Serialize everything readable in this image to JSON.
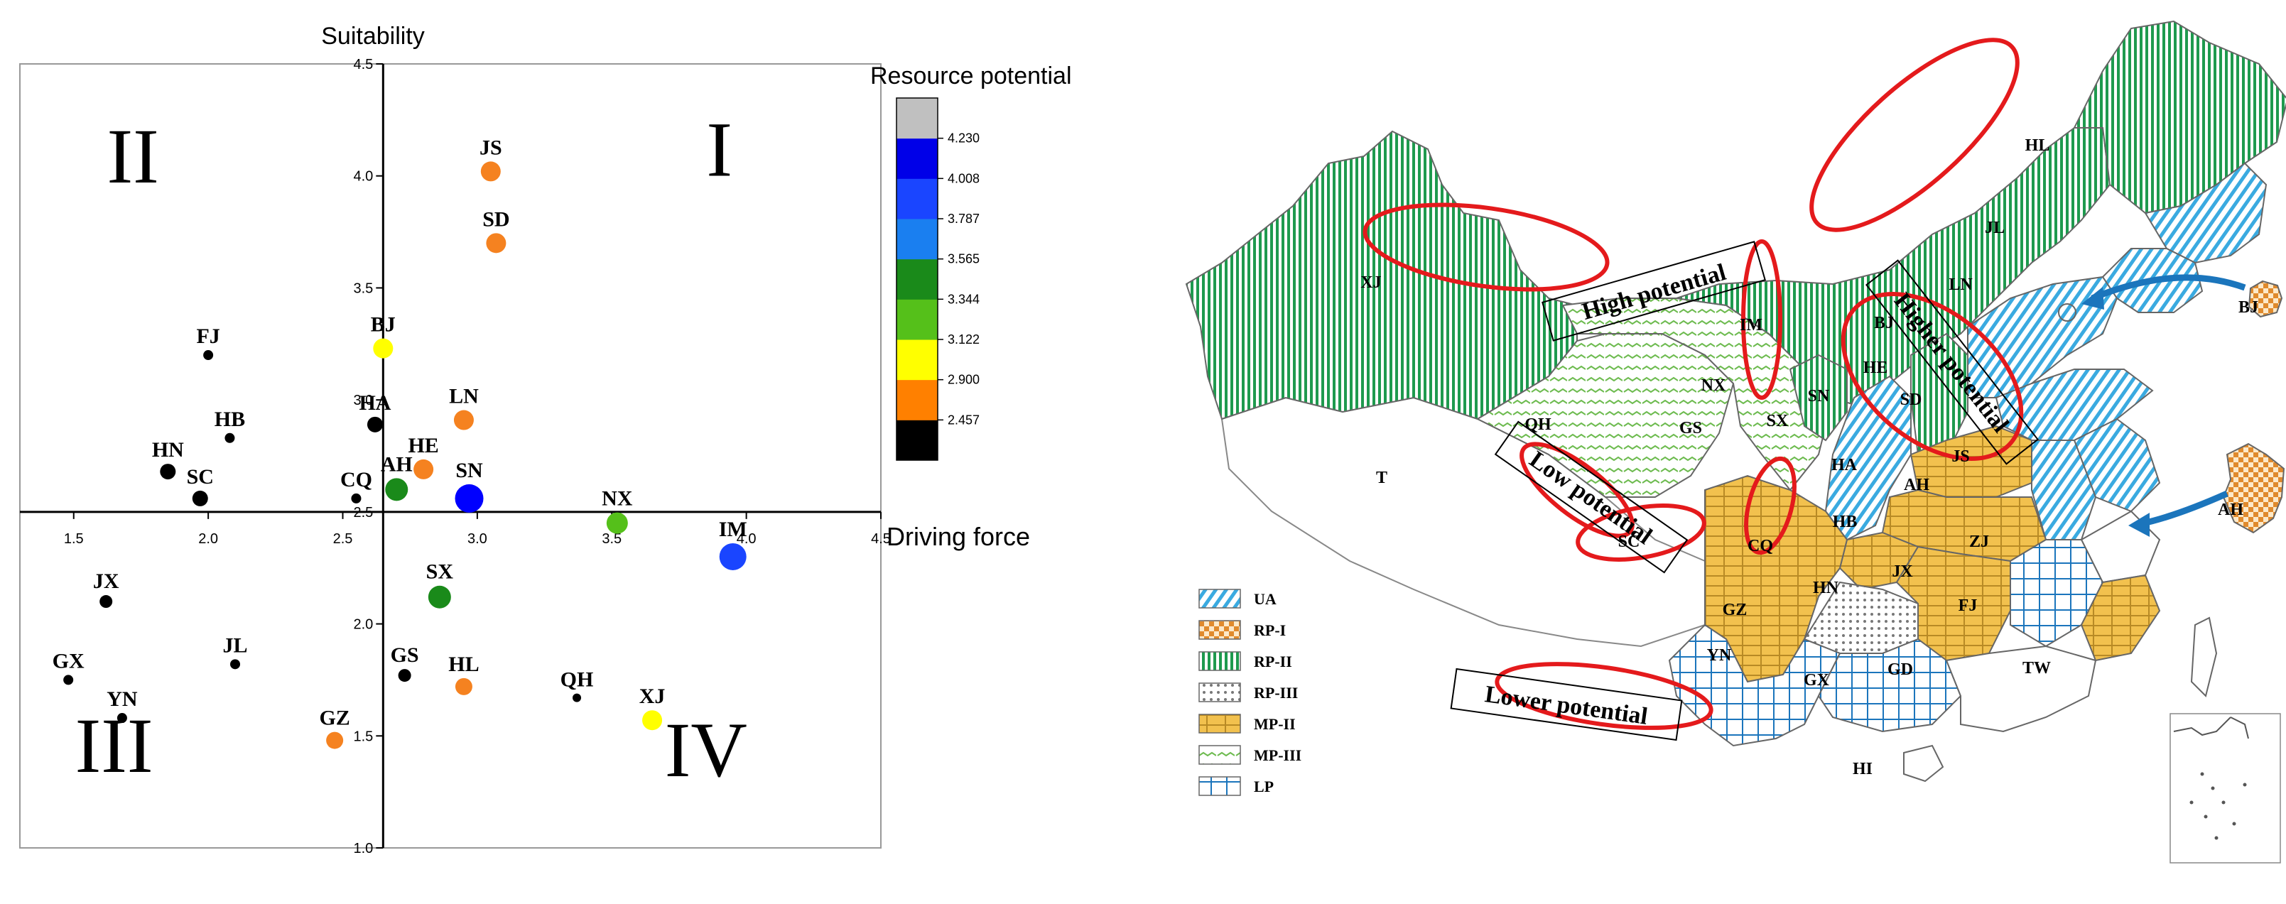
{
  "chart_data": {
    "type": "scatter",
    "title": "",
    "xlabel": "Driving force",
    "ylabel": "Suitability",
    "xlim": [
      1.3,
      4.5
    ],
    "ylim": [
      1.0,
      4.5
    ],
    "x_cross": 2.65,
    "y_cross": 2.5,
    "x_ticks": [
      "1.5",
      "2.0",
      "2.5",
      "3.0",
      "3.5",
      "4.0",
      "4.5"
    ],
    "y_ticks": [
      "1.0",
      "1.5",
      "2.0",
      "2.5",
      "3.0",
      "3.5",
      "4.0",
      "4.5"
    ],
    "quadrants": [
      "I",
      "II",
      "III",
      "IV"
    ],
    "colorbar": {
      "title": "Resource potential",
      "ticks": [
        "2.457",
        "2.900",
        "3.122",
        "3.344",
        "3.565",
        "3.787",
        "4.008",
        "4.230"
      ],
      "colors": [
        "#000000",
        "#ff8000",
        "#ffff00",
        "#55c01a",
        "#1a8a1a",
        "#1a7ff0",
        "#1a45ff",
        "#0000e8",
        "#c0c0c0"
      ]
    },
    "points": [
      {
        "label": "JS",
        "x": 3.05,
        "y": 4.02,
        "color": "#f58220",
        "size": 14
      },
      {
        "label": "SD",
        "x": 3.07,
        "y": 3.7,
        "color": "#f58220",
        "size": 14
      },
      {
        "label": "BJ",
        "x": 2.65,
        "y": 3.23,
        "color": "#ffff00",
        "size": 14
      },
      {
        "label": "FJ",
        "x": 2.0,
        "y": 3.2,
        "color": "#000000",
        "size": 7
      },
      {
        "label": "HA",
        "x": 2.62,
        "y": 2.89,
        "color": "#000000",
        "size": 11
      },
      {
        "label": "LN",
        "x": 2.95,
        "y": 2.91,
        "color": "#f58220",
        "size": 14
      },
      {
        "label": "HB",
        "x": 2.08,
        "y": 2.83,
        "color": "#000000",
        "size": 7
      },
      {
        "label": "HN",
        "x": 1.85,
        "y": 2.68,
        "color": "#000000",
        "size": 11
      },
      {
        "label": "HE",
        "x": 2.8,
        "y": 2.69,
        "color": "#f58220",
        "size": 14
      },
      {
        "label": "SC",
        "x": 1.97,
        "y": 2.56,
        "color": "#000000",
        "size": 11
      },
      {
        "label": "CQ",
        "x": 2.55,
        "y": 2.56,
        "color": "#000000",
        "size": 7
      },
      {
        "label": "AH",
        "x": 2.7,
        "y": 2.6,
        "color": "#1a8a1a",
        "size": 16
      },
      {
        "label": "SN",
        "x": 2.97,
        "y": 2.56,
        "color": "#0000ff",
        "size": 20
      },
      {
        "label": "NX",
        "x": 3.52,
        "y": 2.45,
        "color": "#55c01a",
        "size": 15
      },
      {
        "label": "IM",
        "x": 3.95,
        "y": 2.3,
        "color": "#1a45ff",
        "size": 19
      },
      {
        "label": "JX",
        "x": 1.62,
        "y": 2.1,
        "color": "#000000",
        "size": 9
      },
      {
        "label": "SX",
        "x": 2.86,
        "y": 2.12,
        "color": "#1a8a1a",
        "size": 16
      },
      {
        "label": "GX",
        "x": 1.48,
        "y": 1.75,
        "color": "#000000",
        "size": 7
      },
      {
        "label": "JL",
        "x": 2.1,
        "y": 1.82,
        "color": "#000000",
        "size": 7
      },
      {
        "label": "GS",
        "x": 2.73,
        "y": 1.77,
        "color": "#000000",
        "size": 9
      },
      {
        "label": "HL",
        "x": 2.95,
        "y": 1.72,
        "color": "#f58220",
        "size": 12
      },
      {
        "label": "QH",
        "x": 3.37,
        "y": 1.67,
        "color": "#000000",
        "size": 6
      },
      {
        "label": "YN",
        "x": 1.68,
        "y": 1.58,
        "color": "#000000",
        "size": 7
      },
      {
        "label": "XJ",
        "x": 3.65,
        "y": 1.57,
        "color": "#ffff00",
        "size": 14
      },
      {
        "label": "GZ",
        "x": 2.47,
        "y": 1.48,
        "color": "#f58220",
        "size": 12
      }
    ]
  },
  "map": {
    "region_labels": [
      "XJ",
      "T",
      "QH",
      "GS",
      "IM",
      "NX",
      "SX",
      "SN",
      "HE",
      "BJ",
      "LN",
      "JL",
      "HL",
      "SD",
      "JS",
      "AH",
      "HA",
      "HB",
      "CQ",
      "SC",
      "GZ",
      "HN",
      "JX",
      "FJ",
      "ZJ",
      "YN",
      "GX",
      "GD",
      "TW",
      "HI"
    ],
    "inset_labels": [
      "BJ",
      "AH"
    ],
    "zone_texts": [
      "High potential",
      "Higher potential",
      "Low potential",
      "Lower potential"
    ],
    "legend": [
      {
        "code": "UA",
        "pattern": "ua"
      },
      {
        "code": "RP-I",
        "pattern": "rp1"
      },
      {
        "code": "RP-II",
        "pattern": "rp2"
      },
      {
        "code": "RP-III",
        "pattern": "rp3"
      },
      {
        "code": "MP-II",
        "pattern": "mp2"
      },
      {
        "code": "MP-III",
        "pattern": "mp3"
      },
      {
        "code": "LP",
        "pattern": "lp"
      }
    ],
    "colors": {
      "green": "#1e9a4e",
      "cyan": "#3aaae0",
      "yellow": "#f2c14e",
      "orange": "#e08a2c",
      "red": "#e41a1c",
      "arrow": "#1b75bc"
    }
  }
}
